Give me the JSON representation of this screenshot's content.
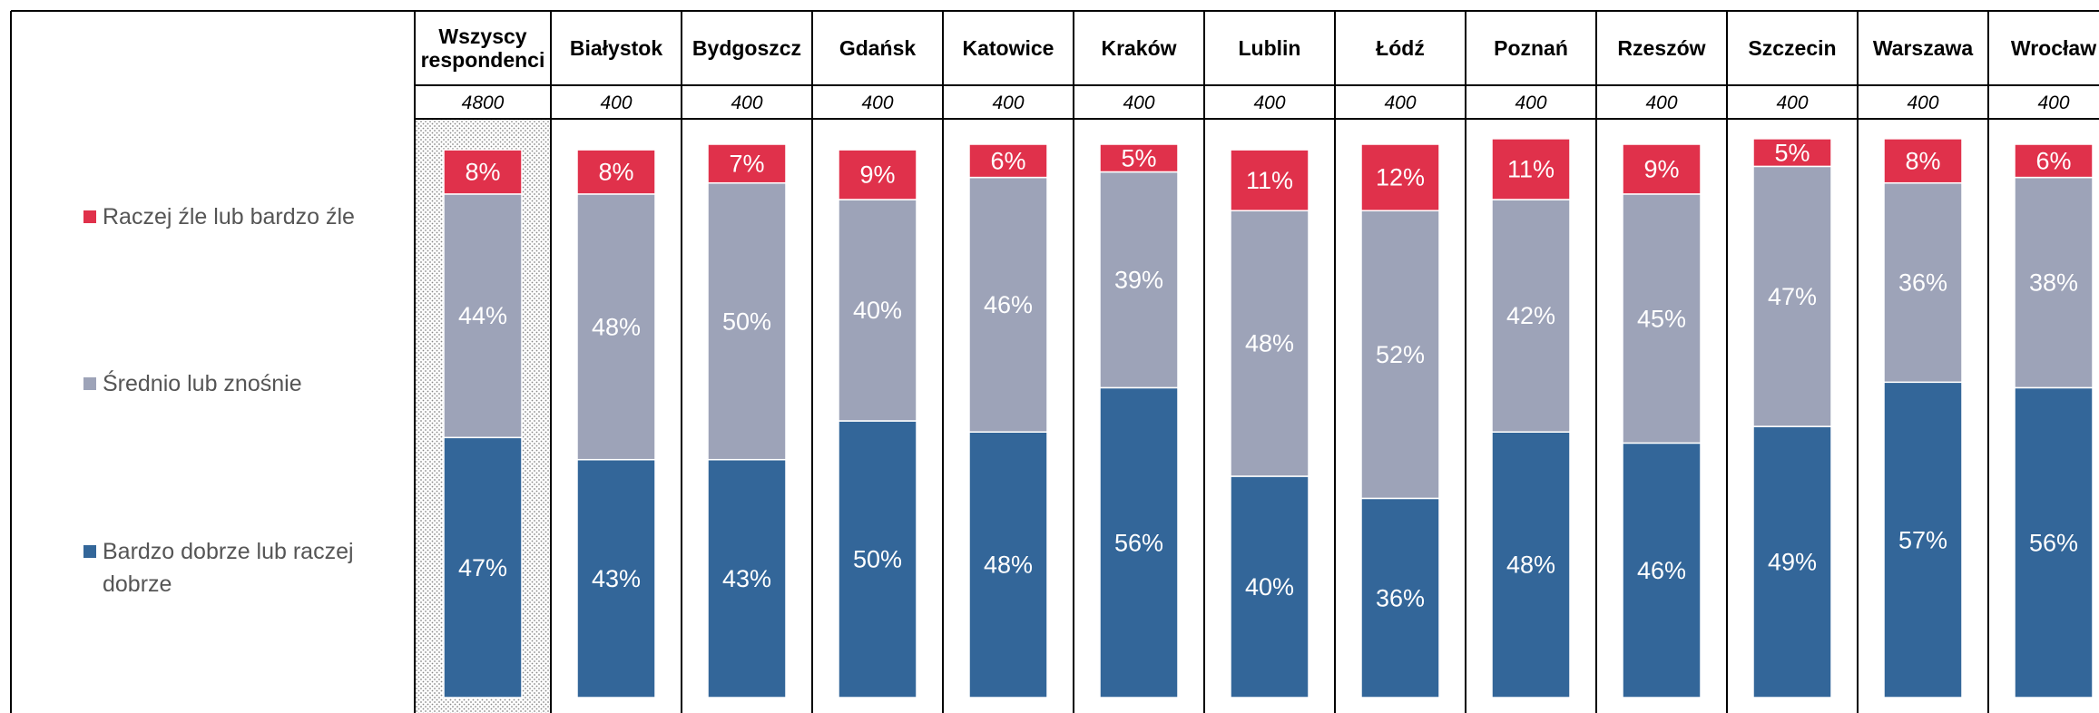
{
  "chart_data": {
    "type": "bar",
    "stacked": true,
    "categories": [
      "Wszyscy respondenci",
      "Białystok",
      "Bydgoszcz",
      "Gdańsk",
      "Katowice",
      "Kraków",
      "Lublin",
      "Łódź",
      "Poznań",
      "Rzeszów",
      "Szczecin",
      "Warszawa",
      "Wrocław"
    ],
    "sample_sizes": [
      4800,
      400,
      400,
      400,
      400,
      400,
      400,
      400,
      400,
      400,
      400,
      400,
      400
    ],
    "ylim": [
      0,
      100
    ],
    "series": [
      {
        "name": "Bardzo dobrze lub raczej dobrze",
        "color": "#336699",
        "values": [
          47,
          43,
          43,
          50,
          48,
          56,
          40,
          36,
          48,
          46,
          49,
          57,
          56
        ],
        "value_labels": [
          "47%",
          "43%",
          "43%",
          "50%",
          "48%",
          "56%",
          "40%",
          "36%",
          "48%",
          "46%",
          "49%",
          "57%",
          "56%"
        ]
      },
      {
        "name": "Średnio lub znośnie",
        "color": "#9da3b8",
        "values": [
          44,
          48,
          50,
          40,
          46,
          39,
          48,
          52,
          42,
          45,
          47,
          36,
          38
        ],
        "value_labels": [
          "44%",
          "48%",
          "50%",
          "40%",
          "46%",
          "39%",
          "48%",
          "52%",
          "42%",
          "45%",
          "47%",
          "36%",
          "38%"
        ]
      },
      {
        "name": "Raczej źle lub bardzo źle",
        "color": "#e0314b",
        "values": [
          8,
          8,
          7,
          9,
          6,
          5,
          11,
          12,
          11,
          9,
          5,
          8,
          6
        ],
        "value_labels": [
          "8%",
          "8%",
          "7%",
          "9%",
          "6%",
          "5%",
          "11%",
          "12%",
          "11%",
          "9%",
          "5%",
          "8%",
          "6%"
        ]
      }
    ]
  }
}
